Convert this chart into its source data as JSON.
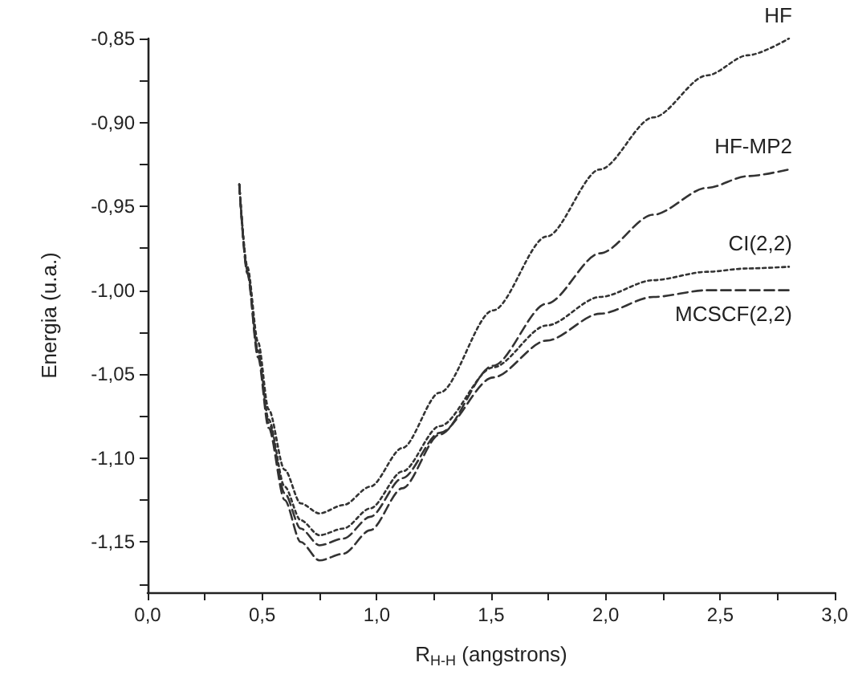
{
  "chart_data": {
    "type": "line",
    "xlabel": "R$_{H-H}$ (angstrons)",
    "ylabel": "Energia (u.a.)",
    "x": [
      0.4,
      0.435,
      0.482,
      0.528,
      0.598,
      0.668,
      0.75,
      0.855,
      0.972,
      1.112,
      1.275,
      1.508,
      1.742,
      1.975,
      2.208,
      2.442,
      2.62,
      2.8
    ],
    "series": [
      {
        "name": "HF",
        "color": "#333333",
        "line_style": "dotted",
        "values": [
          -0.937,
          -0.986,
          -1.031,
          -1.071,
          -1.107,
          -1.127,
          -1.133,
          -1.128,
          -1.117,
          -1.094,
          -1.061,
          -1.012,
          -0.968,
          -0.928,
          -0.897,
          -0.872,
          -0.86,
          -0.85
        ]
      },
      {
        "name": "HF-MP2",
        "color": "#333333",
        "line_style": "dashed",
        "values": [
          -0.937,
          -0.99,
          -1.04,
          -1.082,
          -1.125,
          -1.15,
          -1.161,
          -1.157,
          -1.143,
          -1.118,
          -1.086,
          -1.045,
          -1.008,
          -0.978,
          -0.955,
          -0.939,
          -0.932,
          -0.928
        ]
      },
      {
        "name": "CI(2,2)",
        "color": "#333333",
        "line_style": "dotted",
        "values": [
          -0.937,
          -0.988,
          -1.036,
          -1.077,
          -1.117,
          -1.137,
          -1.146,
          -1.142,
          -1.13,
          -1.108,
          -1.081,
          -1.046,
          -1.021,
          -1.004,
          -0.994,
          -0.989,
          -0.987,
          -0.986
        ]
      },
      {
        "name": "MCSCF(2,2)",
        "color": "#333333",
        "line_style": "dashed",
        "values": [
          -0.937,
          -0.989,
          -1.038,
          -1.079,
          -1.121,
          -1.142,
          -1.152,
          -1.148,
          -1.135,
          -1.112,
          -1.085,
          -1.052,
          -1.03,
          -1.014,
          -1.004,
          -1.0,
          -1.0,
          -1.0
        ]
      }
    ],
    "xlim": [
      0,
      3.0
    ],
    "xticks": [
      {
        "value": 0,
        "label": "0,0"
      },
      {
        "value": 0.25,
        "label": null
      },
      {
        "value": 0.5,
        "label": "0,5"
      },
      {
        "value": 0.75,
        "label": null
      },
      {
        "value": 1.0,
        "label": "1,0"
      },
      {
        "value": 1.25,
        "label": null
      },
      {
        "value": 1.5,
        "label": "1,5"
      },
      {
        "value": 1.75,
        "label": null
      },
      {
        "value": 2.0,
        "label": "2,0"
      },
      {
        "value": 2.25,
        "label": null
      },
      {
        "value": 2.5,
        "label": "2,5"
      },
      {
        "value": 2.75,
        "label": null
      },
      {
        "value": 3.0,
        "label": "3,0"
      }
    ],
    "ylim": [
      -1.18,
      -0.85
    ],
    "yticks": [
      {
        "value": -1.175,
        "label": null
      },
      {
        "value": -1.15,
        "label": "-1,15"
      },
      {
        "value": -1.125,
        "label": null
      },
      {
        "value": -1.1,
        "label": "-1,10"
      },
      {
        "value": -1.075,
        "label": null
      },
      {
        "value": -1.05,
        "label": "-1,05"
      },
      {
        "value": -1.025,
        "label": null
      },
      {
        "value": -1.0,
        "label": "-1,00"
      },
      {
        "value": -0.975,
        "label": null
      },
      {
        "value": -0.95,
        "label": "-0,95"
      },
      {
        "value": -0.925,
        "label": null
      },
      {
        "value": -0.9,
        "label": "-0,90"
      },
      {
        "value": -0.875,
        "label": null
      },
      {
        "value": -0.85,
        "label": "-0,85"
      }
    ],
    "grid": false,
    "marker": "none",
    "legend": false
  }
}
